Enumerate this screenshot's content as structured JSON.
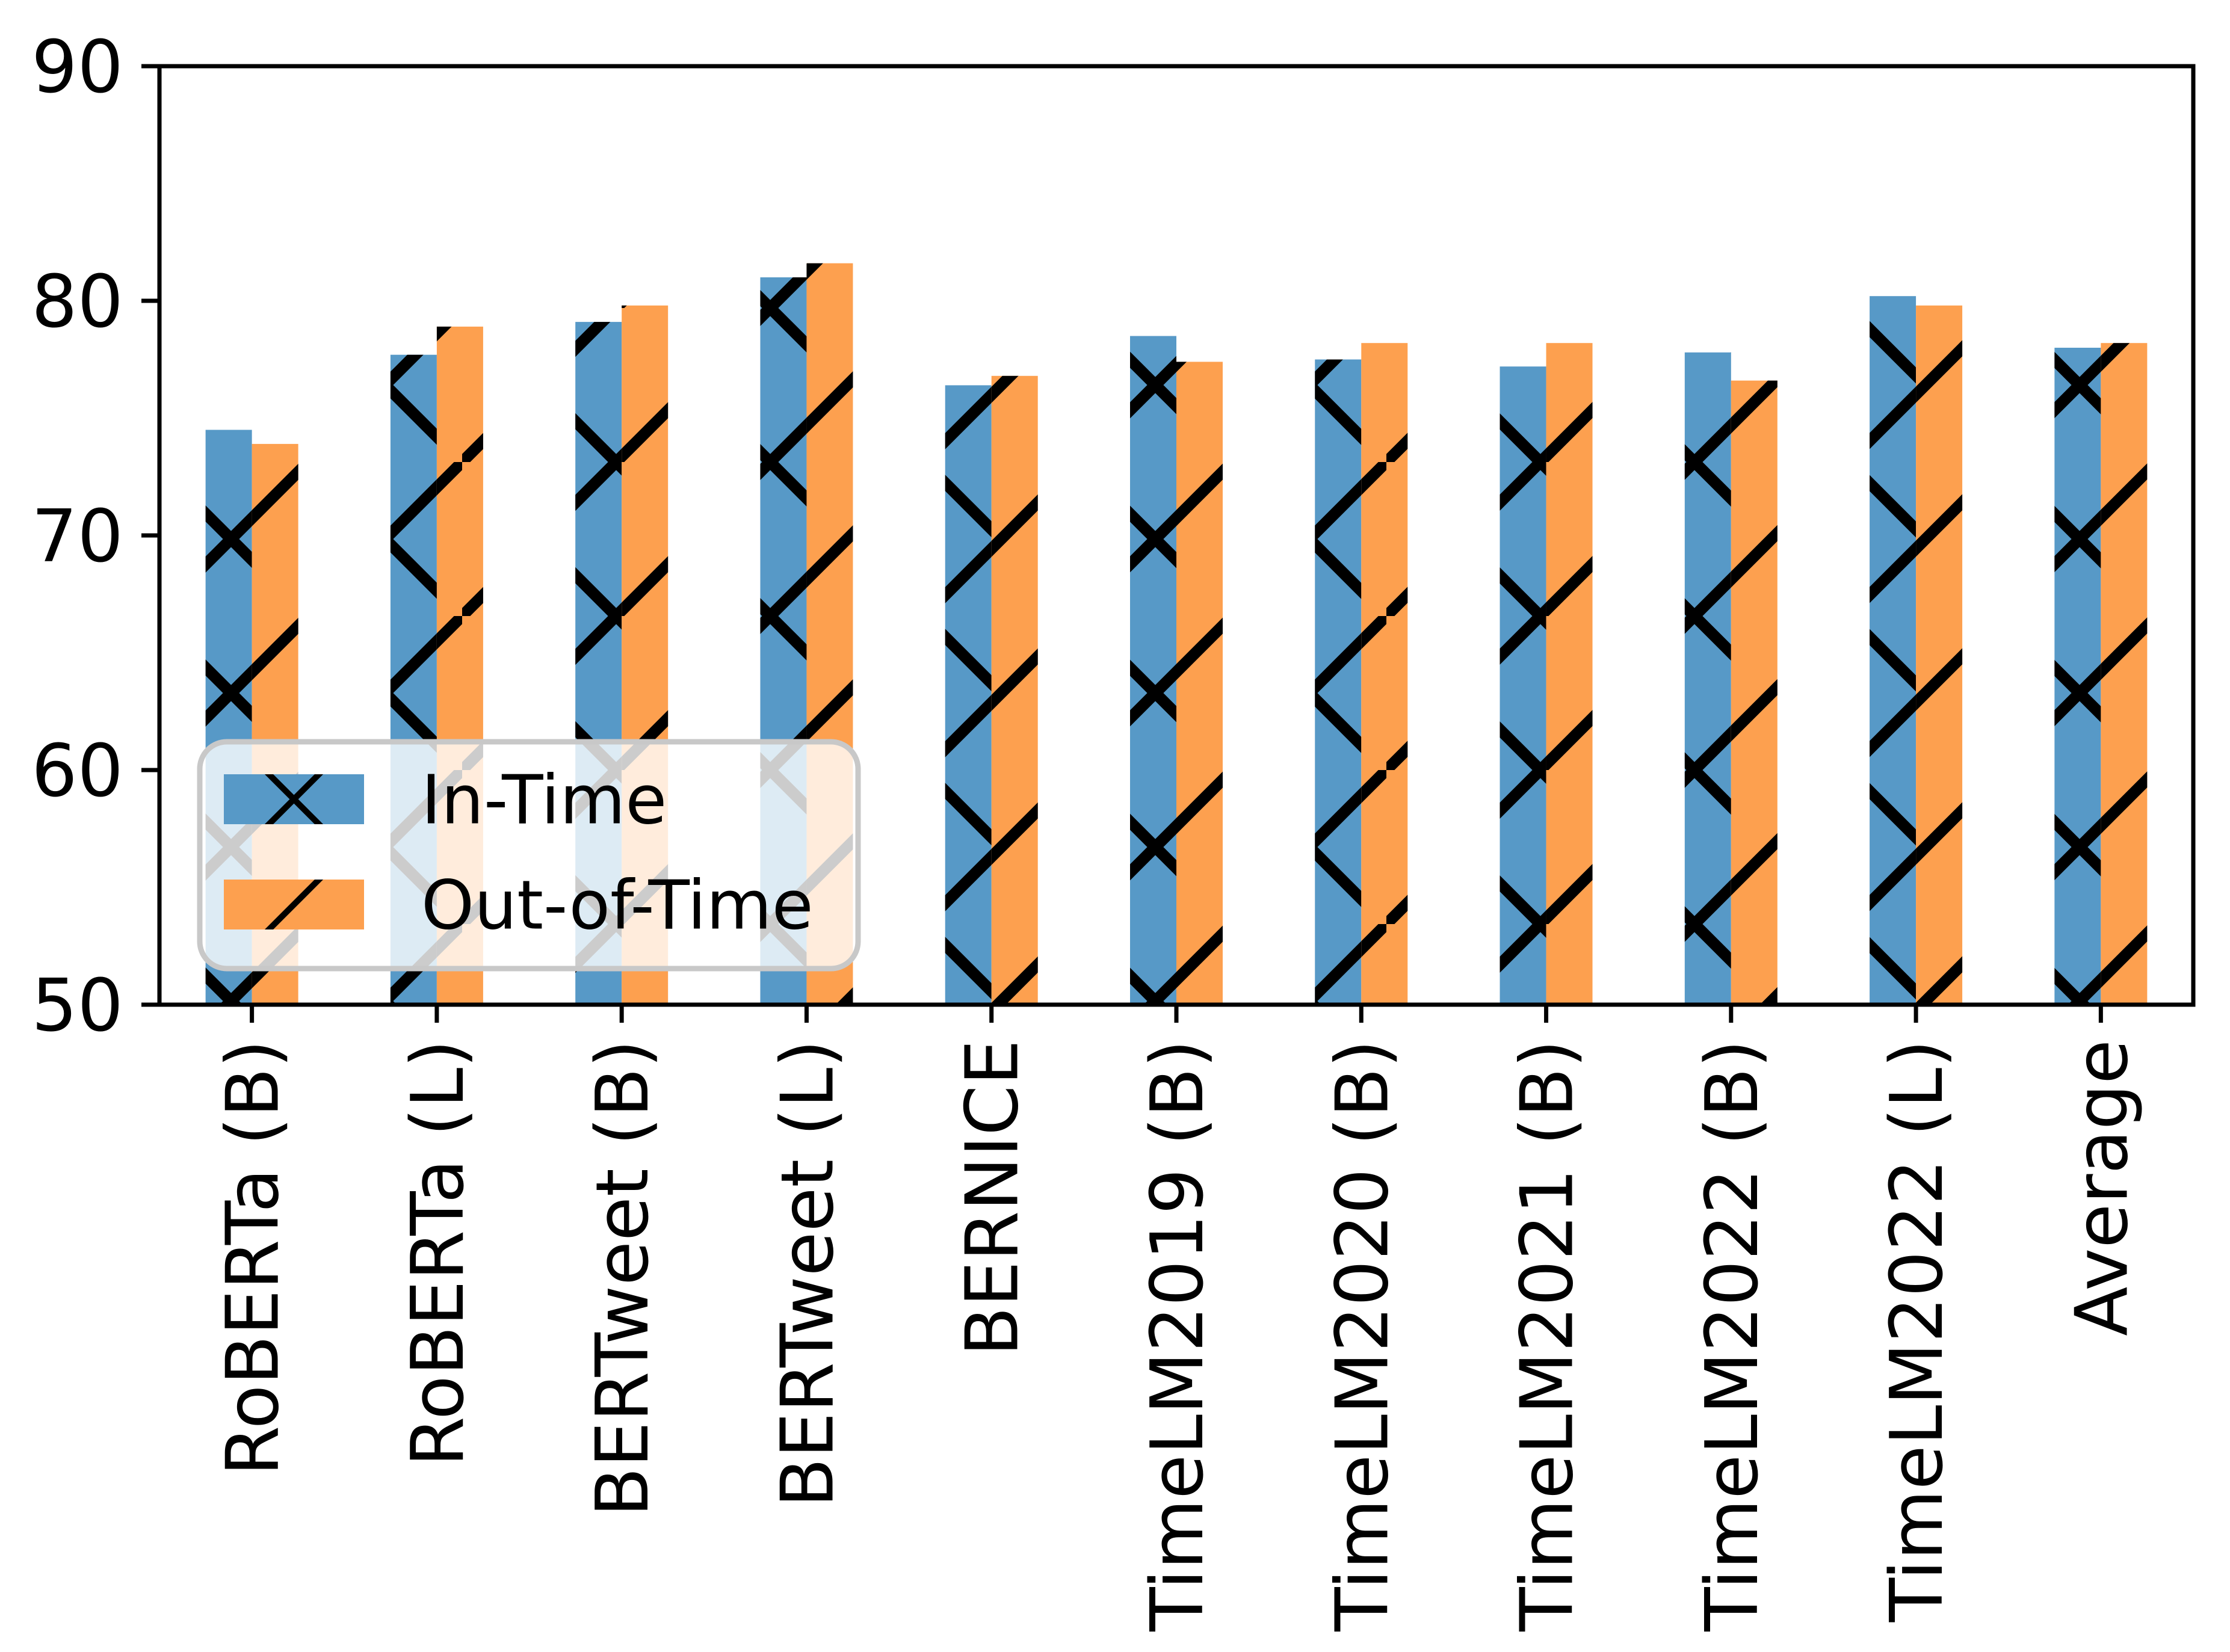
{
  "figure": {
    "background": "#ffffff",
    "description": "Grouped bar chart comparing In-Time vs Out-of-Time performance of language models"
  },
  "chart_data": {
    "type": "bar",
    "title": "",
    "xlabel": "",
    "ylabel": "",
    "categories": [
      "RoBERTa (B)",
      "RoBERTa (L)",
      "BERTweet (B)",
      "BERTweet (L)",
      "BERNICE",
      "TimeLM2019 (B)",
      "TimeLM2020 (B)",
      "TimeLM2021 (B)",
      "TimeLM2022 (B)",
      "TimeLM2022 (L)",
      "Average"
    ],
    "series": [
      {
        "name": "In-Time",
        "color": "#5799c7",
        "hatch": "x",
        "values": [
          74.5,
          77.7,
          79.1,
          81.0,
          76.4,
          78.5,
          77.5,
          77.2,
          77.8,
          80.2,
          78.0
        ]
      },
      {
        "name": "Out-of-Time",
        "color": "#fda04f",
        "hatch": "/",
        "values": [
          73.9,
          78.9,
          79.8,
          81.6,
          76.8,
          77.4,
          78.2,
          78.2,
          76.6,
          79.8,
          78.2
        ]
      }
    ],
    "ylim": [
      50,
      90
    ],
    "yticks": [
      50,
      60,
      70,
      80,
      90
    ],
    "x_tick_rotation": 90,
    "grid": false,
    "legend": {
      "position": "lower left",
      "entries": [
        "In-Time",
        "Out-of-Time"
      ],
      "border_color": "#c8c8c8",
      "background": "rgba(255,255,255,0.8)"
    },
    "hatch_color": "#000000",
    "axis_color": "#000000"
  }
}
